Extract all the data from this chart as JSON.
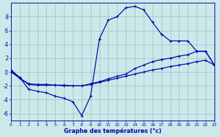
{
  "xlabel": "Graphe des températures (°c)",
  "bg_color": "#cce8e8",
  "line_color": "#0000aa",
  "grid_color": "#99bbcc",
  "xlim": [
    0,
    23
  ],
  "ylim": [
    -7,
    10
  ],
  "xticks": [
    0,
    1,
    2,
    3,
    4,
    5,
    6,
    7,
    8,
    9,
    10,
    11,
    12,
    13,
    14,
    15,
    16,
    17,
    18,
    19,
    20,
    21,
    22,
    23
  ],
  "yticks": [
    -6,
    -4,
    -2,
    0,
    2,
    4,
    6,
    8
  ],
  "line1_x": [
    0,
    1,
    2,
    3,
    4,
    5,
    6,
    7,
    8,
    9,
    10,
    11,
    12,
    13,
    14,
    15,
    16,
    17,
    18,
    19,
    20,
    21,
    22,
    23
  ],
  "line1_y": [
    0.3,
    -0.8,
    -2.5,
    -2.8,
    -3.0,
    -3.5,
    -3.8,
    -4.3,
    -6.3,
    -3.5,
    4.8,
    7.5,
    8.0,
    9.3,
    9.5,
    9.0,
    7.2,
    5.5,
    4.5,
    4.5,
    4.5,
    3.0,
    3.0,
    1.0
  ],
  "line2_x": [
    0,
    1,
    2,
    3,
    4,
    5,
    6,
    7,
    8,
    9,
    10,
    11,
    12,
    13,
    14,
    15,
    16,
    17,
    18,
    19,
    20,
    21,
    22,
    23
  ],
  "line2_y": [
    0.2,
    -0.9,
    -1.8,
    -1.9,
    -1.9,
    -1.9,
    -2.0,
    -2.0,
    -2.0,
    -1.7,
    -1.4,
    -1.0,
    -0.6,
    -0.3,
    0.5,
    1.0,
    1.5,
    1.8,
    2.0,
    2.3,
    2.5,
    3.0,
    3.0,
    1.0
  ],
  "line3_x": [
    0,
    1,
    2,
    3,
    4,
    5,
    6,
    7,
    8,
    9,
    10,
    11,
    12,
    13,
    14,
    15,
    16,
    17,
    18,
    19,
    20,
    21,
    22,
    23
  ],
  "line3_y": [
    0.0,
    -0.9,
    -1.7,
    -1.8,
    -1.8,
    -1.9,
    -1.9,
    -2.0,
    -2.0,
    -1.8,
    -1.5,
    -1.2,
    -0.9,
    -0.6,
    -0.3,
    0.0,
    0.3,
    0.5,
    0.8,
    1.0,
    1.2,
    1.5,
    1.7,
    1.0
  ]
}
